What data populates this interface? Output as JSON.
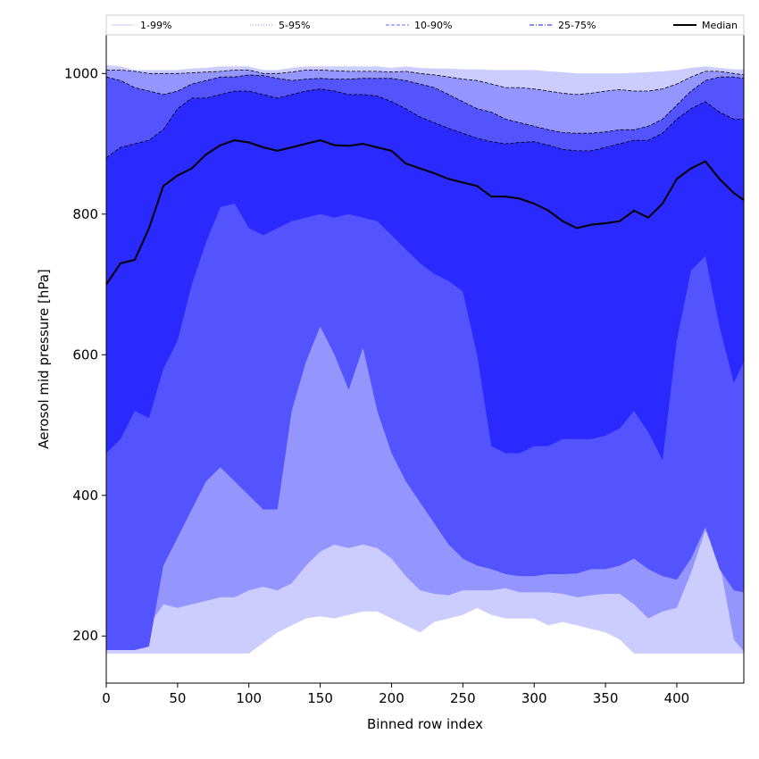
{
  "chart_data": {
    "type": "area",
    "title": "",
    "xlabel": "Binned row index",
    "ylabel": "Aerosol mid pressure [hPa]",
    "xlim": [
      0,
      447
    ],
    "ylim": [
      133,
      1055
    ],
    "x_ticks": [
      "0",
      "50",
      "100",
      "150",
      "200",
      "250",
      "300",
      "350",
      "400"
    ],
    "y_ticks": [
      "200",
      "400",
      "600",
      "800",
      "1000"
    ],
    "grid": false,
    "legend_position": "top",
    "legend": [
      {
        "label": "1-99%",
        "color": "#d8d8ff",
        "dash": "solid"
      },
      {
        "label": "5-95%",
        "color": "#9a9aff",
        "dash": "dotted"
      },
      {
        "label": "10-90%",
        "color": "#8888ff",
        "dash": "dashed"
      },
      {
        "label": "25-75%",
        "color": "#4040ee",
        "dash": "dashdot"
      },
      {
        "label": "Median",
        "color": "#000000",
        "dash": "solid"
      }
    ],
    "x": [
      0,
      10,
      20,
      30,
      40,
      50,
      60,
      70,
      80,
      90,
      100,
      110,
      120,
      130,
      140,
      150,
      160,
      170,
      180,
      190,
      200,
      210,
      220,
      230,
      240,
      250,
      260,
      270,
      280,
      290,
      300,
      310,
      320,
      330,
      340,
      350,
      360,
      370,
      380,
      390,
      400,
      410,
      420,
      430,
      440,
      447
    ],
    "bands": [
      {
        "name": "1-99%",
        "color": "#cccdfe",
        "lower": [
          175,
          175,
          175,
          175,
          175,
          175,
          175,
          175,
          175,
          175,
          175,
          190,
          205,
          215,
          225,
          228,
          225,
          230,
          235,
          235,
          225,
          215,
          205,
          220,
          225,
          230,
          240,
          230,
          225,
          225,
          225,
          215,
          220,
          215,
          210,
          205,
          195,
          175,
          175,
          175,
          175,
          175,
          175,
          175,
          175,
          175
        ],
        "upper": [
          1012,
          1010,
          1005,
          1005,
          1005,
          1005,
          1007,
          1008,
          1010,
          1010,
          1010,
          1005,
          1005,
          1008,
          1010,
          1010,
          1010,
          1010,
          1010,
          1010,
          1008,
          1010,
          1008,
          1007,
          1007,
          1006,
          1006,
          1005,
          1005,
          1005,
          1005,
          1003,
          1002,
          1000,
          1000,
          1000,
          1000,
          1001,
          1002,
          1003,
          1005,
          1008,
          1010,
          1008,
          1006,
          1006
        ]
      },
      {
        "name": "5-95%",
        "color": "#9595fe",
        "lower": [
          260,
          270,
          235,
          215,
          245,
          240,
          245,
          250,
          255,
          255,
          265,
          270,
          265,
          275,
          300,
          320,
          330,
          325,
          330,
          325,
          310,
          285,
          265,
          260,
          258,
          265,
          265,
          265,
          268,
          262,
          262,
          262,
          260,
          255,
          258,
          260,
          260,
          245,
          225,
          235,
          240,
          290,
          350,
          305,
          195,
          178
        ],
        "upper": [
          1005,
          1005,
          1003,
          1000,
          1000,
          1000,
          1001,
          1002,
          1003,
          1005,
          1005,
          1000,
          1000,
          1002,
          1005,
          1005,
          1004,
          1003,
          1003,
          1003,
          1002,
          1003,
          1000,
          998,
          995,
          992,
          990,
          985,
          980,
          980,
          978,
          975,
          972,
          970,
          972,
          975,
          977,
          975,
          975,
          978,
          985,
          995,
          1003,
          1003,
          1000,
          998
        ]
      },
      {
        "name": "10-90%",
        "color": "#5454fe",
        "lower": [
          180,
          180,
          180,
          185,
          300,
          340,
          380,
          420,
          440,
          420,
          400,
          380,
          380,
          520,
          590,
          640,
          600,
          550,
          610,
          520,
          460,
          420,
          390,
          360,
          330,
          310,
          300,
          295,
          288,
          285,
          285,
          288,
          288,
          289,
          295,
          295,
          300,
          310,
          295,
          285,
          280,
          310,
          355,
          295,
          265,
          262
        ],
        "upper": [
          995,
          990,
          980,
          975,
          970,
          975,
          985,
          990,
          995,
          995,
          998,
          997,
          993,
          990,
          992,
          993,
          992,
          992,
          993,
          993,
          993,
          990,
          985,
          980,
          970,
          960,
          950,
          945,
          935,
          930,
          925,
          920,
          916,
          915,
          915,
          917,
          920,
          920,
          925,
          935,
          955,
          975,
          990,
          995,
          995,
          993
        ]
      },
      {
        "name": "25-75%",
        "color": "#2a2afe",
        "lower": [
          460,
          480,
          520,
          510,
          580,
          620,
          700,
          760,
          810,
          815,
          780,
          770,
          780,
          790,
          795,
          800,
          795,
          800,
          795,
          790,
          770,
          750,
          730,
          715,
          705,
          690,
          600,
          470,
          460,
          460,
          470,
          470,
          480,
          480,
          480,
          485,
          495,
          520,
          490,
          450,
          620,
          720,
          740,
          640,
          560,
          590
        ],
        "upper": [
          880,
          895,
          900,
          905,
          920,
          950,
          965,
          965,
          970,
          975,
          975,
          970,
          965,
          970,
          975,
          978,
          975,
          970,
          970,
          968,
          960,
          950,
          938,
          930,
          922,
          915,
          908,
          903,
          900,
          902,
          903,
          898,
          892,
          890,
          890,
          895,
          900,
          905,
          905,
          915,
          935,
          950,
          960,
          945,
          935,
          935
        ]
      }
    ],
    "series": [
      {
        "name": "Median",
        "color": "#000000",
        "values": [
          700,
          730,
          735,
          780,
          840,
          855,
          865,
          885,
          898,
          905,
          902,
          895,
          890,
          895,
          900,
          905,
          898,
          897,
          900,
          895,
          890,
          872,
          865,
          858,
          850,
          845,
          840,
          825,
          825,
          822,
          815,
          805,
          790,
          780,
          785,
          787,
          790,
          805,
          795,
          815,
          850,
          865,
          875,
          850,
          830,
          820
        ]
      }
    ]
  }
}
